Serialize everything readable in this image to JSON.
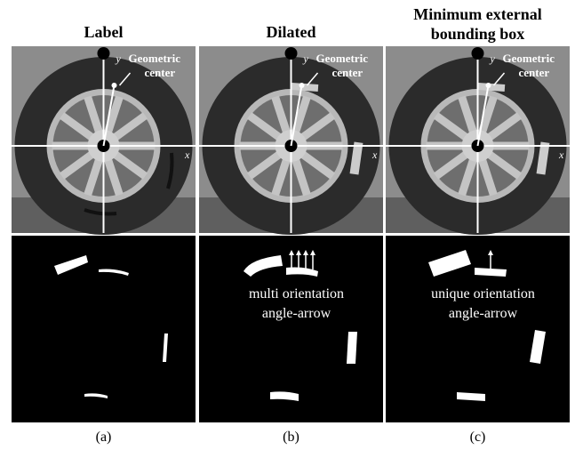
{
  "panels": [
    {
      "title": [
        "Label"
      ],
      "axis_x": "x",
      "axis_y": "y",
      "center_label": [
        "Geometric",
        "center"
      ],
      "caption": "(a)"
    },
    {
      "title": [
        "Dilated"
      ],
      "axis_x": "x",
      "axis_y": "y",
      "center_label": [
        "Geometric",
        "center"
      ],
      "annotation": [
        "multi orientation",
        "angle-arrow"
      ],
      "caption": "(b)"
    },
    {
      "title": [
        "Minimum external",
        "bounding box"
      ],
      "axis_x": "x",
      "axis_y": "y",
      "center_label": [
        "Geometric",
        "center"
      ],
      "annotation": [
        "unique orientation",
        "angle-arrow"
      ],
      "caption": "(c)"
    }
  ]
}
